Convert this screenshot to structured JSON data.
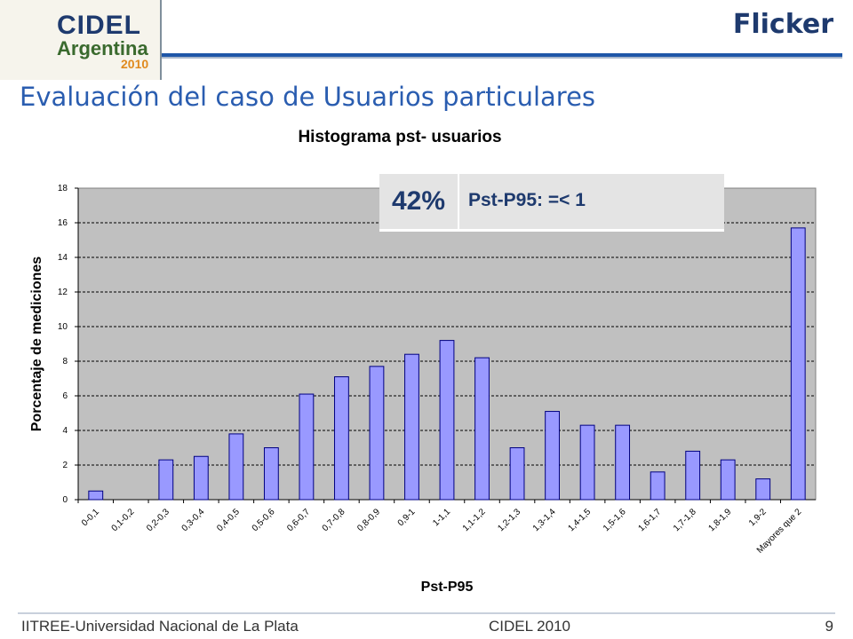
{
  "logo": {
    "line1": "CIDEL",
    "line2": "Argentina",
    "line3": "2010"
  },
  "header": {
    "title": "Flicker"
  },
  "subtitle": "Evaluación del caso de Usuarios particulares",
  "callout": {
    "percent": "42%",
    "text": "Pst-P95: =< 1"
  },
  "footer": {
    "left": "IITREE-Universidad Nacional de La Plata",
    "center": "CIDEL 2010",
    "page": "9"
  },
  "colors": {
    "bar": "#9999ff",
    "plot_bg": "#c0c0c0",
    "title_blue": "#1e3a6e",
    "subtitle_blue": "#2a5db0"
  },
  "chart_data": {
    "type": "bar",
    "title": "Histograma pst- usuarios",
    "xlabel": "Pst-P95",
    "ylabel": "Porcentaje de mediciones",
    "ylim": [
      0,
      18
    ],
    "yticks": [
      0,
      2,
      4,
      6,
      8,
      10,
      12,
      14,
      16,
      18
    ],
    "grid": true,
    "categories": [
      "0-0,1",
      "0,1-0,2",
      "0,2-0,3",
      "0,3-0,4",
      "0,4-0,5",
      "0,5-0,6",
      "0,6-0,7",
      "0,7-0,8",
      "0,8-0,9",
      "0,9-1",
      "1-1,1",
      "1,1-1,2",
      "1,2-1,3",
      "1,3-1,4",
      "1,4-1,5",
      "1,5-1,6",
      "1,6-1,7",
      "1,7-1,8",
      "1,8-1,9",
      "1,9-2",
      "Mayores que 2"
    ],
    "values": [
      0.5,
      0,
      2.3,
      2.5,
      3.8,
      3.0,
      6.1,
      7.1,
      7.7,
      8.4,
      9.2,
      8.2,
      3.0,
      5.1,
      4.3,
      4.3,
      1.6,
      2.8,
      2.3,
      1.2,
      15.7
    ]
  }
}
